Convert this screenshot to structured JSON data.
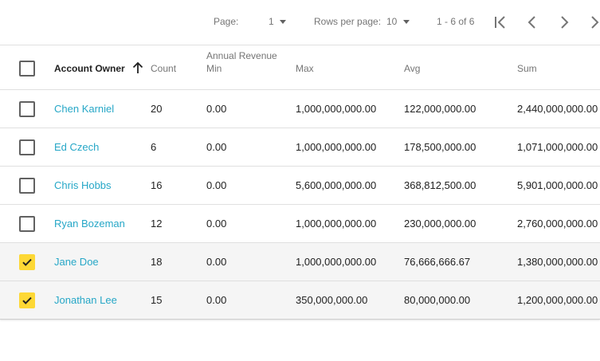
{
  "pager": {
    "page_label": "Page:",
    "page_value": "1",
    "rows_per_page_label": "Rows per page:",
    "rows_per_page_value": "10",
    "range_text": "1 - 6 of 6"
  },
  "columns": {
    "owner": "Account Owner",
    "count": "Count",
    "group": "Annual Revenue",
    "min": "Min",
    "max": "Max",
    "avg": "Avg",
    "sum": "Sum"
  },
  "rows": [
    {
      "owner": "Chen Karniel",
      "count": "20",
      "min": "0.00",
      "max": "1,000,000,000.00",
      "avg": "122,000,000.00",
      "sum": "2,440,000,000.00",
      "selected": false
    },
    {
      "owner": "Ed Czech",
      "count": "6",
      "min": "0.00",
      "max": "1,000,000,000.00",
      "avg": "178,500,000.00",
      "sum": "1,071,000,000.00",
      "selected": false
    },
    {
      "owner": "Chris Hobbs",
      "count": "16",
      "min": "0.00",
      "max": "5,600,000,000.00",
      "avg": "368,812,500.00",
      "sum": "5,901,000,000.00",
      "selected": false
    },
    {
      "owner": "Ryan Bozeman",
      "count": "12",
      "min": "0.00",
      "max": "1,000,000,000.00",
      "avg": "230,000,000.00",
      "sum": "2,760,000,000.00",
      "selected": false
    },
    {
      "owner": "Jane Doe",
      "count": "18",
      "min": "0.00",
      "max": "1,000,000,000.00",
      "avg": "76,666,666.67",
      "sum": "1,380,000,000.00",
      "selected": true
    },
    {
      "owner": "Jonathan Lee",
      "count": "15",
      "min": "0.00",
      "max": "350,000,000.00",
      "avg": "80,000,000.00",
      "sum": "1,200,000,000.00",
      "selected": true
    }
  ],
  "icons": {
    "sort": "arrow-up-icon",
    "first": "first-page-icon",
    "prev": "chevron-left-icon",
    "next": "chevron-right-icon",
    "last": "last-page-icon",
    "checkbox": "check-icon"
  },
  "colors": {
    "link": "#26a7c7",
    "checkbox_selected": "#fdd835",
    "selected_row": "#f5f5f5"
  }
}
